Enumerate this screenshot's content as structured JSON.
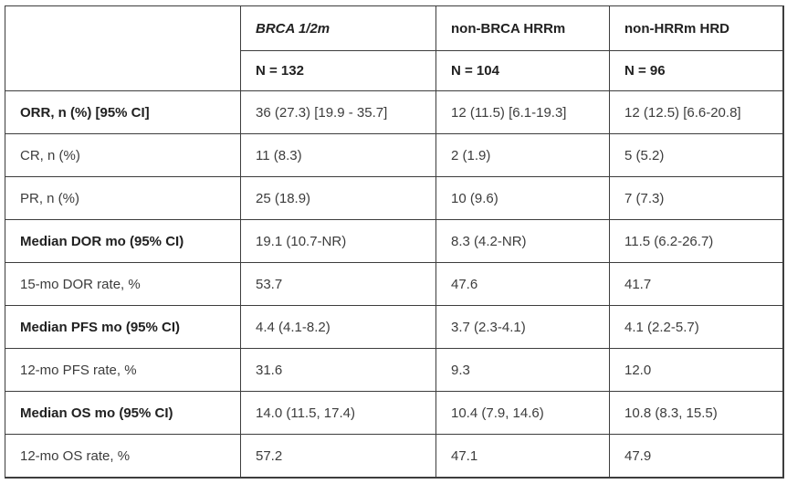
{
  "chart_data": {
    "type": "table",
    "columns": [
      "",
      "BRCA 1/2m",
      "non-BRCA HRRm",
      "non-HRRm HRD"
    ],
    "subheaders": [
      "",
      "N = 132",
      "N = 104",
      "N = 96"
    ],
    "rows": [
      {
        "label": "ORR, n (%) [95% CI]",
        "values": [
          "36 (27.3) [19.9 - 35.7]",
          "12 (11.5) [6.1-19.3]",
          "12 (12.5) [6.6-20.8]"
        ]
      },
      {
        "label": "CR, n (%)",
        "values": [
          "11 (8.3)",
          "2 (1.9)",
          "5 (5.2)"
        ]
      },
      {
        "label": "PR, n (%)",
        "values": [
          "25 (18.9)",
          "10 (9.6)",
          "7 (7.3)"
        ]
      },
      {
        "label": "Median DOR mo (95% CI)",
        "values": [
          "19.1 (10.7-NR)",
          "8.3 (4.2-NR)",
          "11.5 (6.2-26.7)"
        ]
      },
      {
        "label": "15-mo DOR rate, %",
        "values": [
          "53.7",
          "47.6",
          "41.7"
        ]
      },
      {
        "label": "Median PFS mo (95% CI)",
        "values": [
          "4.4 (4.1-8.2)",
          "3.7 (2.3-4.1)",
          "4.1 (2.2-5.7)"
        ]
      },
      {
        "label": "12-mo PFS rate, %",
        "values": [
          "31.6",
          "9.3",
          "12.0"
        ]
      },
      {
        "label": "Median OS mo (95% CI)",
        "values": [
          "14.0 (11.5, 17.4)",
          "10.4 (7.9, 14.6)",
          "10.8 (8.3, 15.5)"
        ]
      },
      {
        "label": "12-mo OS rate, %",
        "values": [
          "57.2",
          "47.1",
          "47.9"
        ]
      }
    ],
    "layout": {
      "grid": true,
      "border_color": "#3d3d3d",
      "text_color": "#3c3c3c",
      "header_text_color": "#212121",
      "background": "#ffffff"
    }
  }
}
